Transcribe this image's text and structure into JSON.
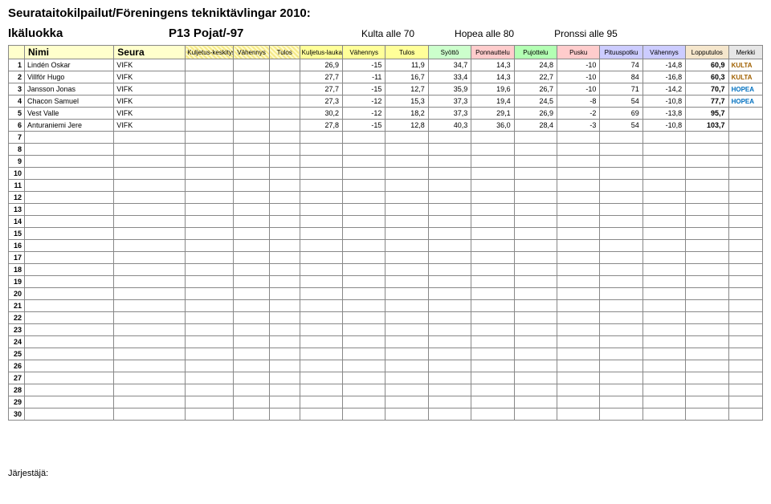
{
  "title": "Seurataitokilpailut/Föreningens tekniktävlingar 2010:",
  "age_row": {
    "label": "Ikäluokka",
    "class": "P13 Pojat/-97",
    "medals": [
      {
        "text": "Kulta alle 70"
      },
      {
        "text": "Hopea alle 80"
      },
      {
        "text": "Pronssi alle 95"
      }
    ]
  },
  "headers": {
    "nimi": "Nimi",
    "seura": "Seura",
    "h1": "Kuljetus-keskitys",
    "h2": "Vähennys",
    "h3": "Tulos",
    "h4": "Kuljetus-laukaus",
    "h5": "Vähennys",
    "h6": "Tulos",
    "h7": "Syöttö",
    "h8": "Ponnauttelu",
    "h9": "Pujottelu",
    "h10": "Pusku",
    "h11": "Pituuspotku",
    "h12": "Vähennys",
    "h13": "Lopputulos",
    "h14": "Merkki"
  },
  "rows": [
    {
      "idx": "1",
      "name": "Lindén Oskar",
      "seura": "VIFK",
      "c4": "26,9",
      "c5": "-15",
      "c6": "11,9",
      "c7": "34,7",
      "c8": "14,3",
      "c9": "24,8",
      "c10": "-10",
      "c11": "74",
      "c12": "-14,8",
      "c13": "60,9",
      "merkki": "KULTA",
      "mclass": "kulta"
    },
    {
      "idx": "2",
      "name": "Villför Hugo",
      "seura": "VIFK",
      "c4": "27,7",
      "c5": "-11",
      "c6": "16,7",
      "c7": "33,4",
      "c8": "14,3",
      "c9": "22,7",
      "c10": "-10",
      "c11": "84",
      "c12": "-16,8",
      "c13": "60,3",
      "merkki": "KULTA",
      "mclass": "kulta"
    },
    {
      "idx": "3",
      "name": "Jansson Jonas",
      "seura": "VIFK",
      "c4": "27,7",
      "c5": "-15",
      "c6": "12,7",
      "c7": "35,9",
      "c8": "19,6",
      "c9": "26,7",
      "c10": "-10",
      "c11": "71",
      "c12": "-14,2",
      "c13": "70,7",
      "merkki": "HOPEA",
      "mclass": "hopea"
    },
    {
      "idx": "4",
      "name": "Chacon Samuel",
      "seura": "VIFK",
      "c4": "27,3",
      "c5": "-12",
      "c6": "15,3",
      "c7": "37,3",
      "c8": "19,4",
      "c9": "24,5",
      "c10": "-8",
      "c11": "54",
      "c12": "-10,8",
      "c13": "77,7",
      "merkki": "HOPEA",
      "mclass": "hopea"
    },
    {
      "idx": "5",
      "name": "Vest Valle",
      "seura": "VIFK",
      "c4": "30,2",
      "c5": "-12",
      "c6": "18,2",
      "c7": "37,3",
      "c8": "29,1",
      "c9": "26,9",
      "c10": "-2",
      "c11": "69",
      "c12": "-13,8",
      "c13": "95,7",
      "merkki": "",
      "mclass": ""
    },
    {
      "idx": "6",
      "name": "Anturaniemi Jere",
      "seura": "VIFK",
      "c4": "27,8",
      "c5": "-15",
      "c6": "12,8",
      "c7": "40,3",
      "c8": "36,0",
      "c9": "28,4",
      "c10": "-3",
      "c11": "54",
      "c12": "-10,8",
      "c13": "103,7",
      "merkki": "",
      "mclass": ""
    }
  ],
  "empty_rows": [
    "7",
    "8",
    "9",
    "10",
    "11",
    "12",
    "13",
    "14",
    "15",
    "16",
    "17",
    "18",
    "19",
    "20",
    "21",
    "22",
    "23",
    "24",
    "25",
    "26",
    "27",
    "28",
    "29",
    "30"
  ],
  "footer": "Järjestäjä:"
}
